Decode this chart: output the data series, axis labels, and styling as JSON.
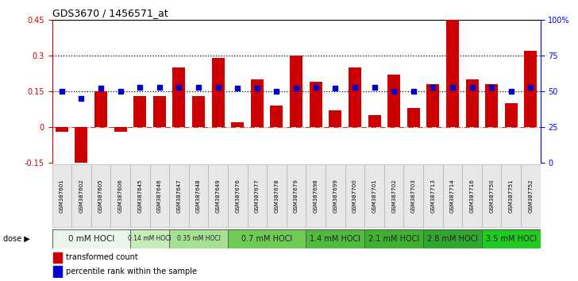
{
  "title": "GDS3670 / 1456571_at",
  "samples": [
    "GSM387601",
    "GSM387602",
    "GSM387605",
    "GSM387606",
    "GSM387645",
    "GSM387646",
    "GSM387647",
    "GSM387648",
    "GSM387649",
    "GSM387676",
    "GSM387677",
    "GSM387678",
    "GSM387679",
    "GSM387698",
    "GSM387699",
    "GSM387700",
    "GSM387701",
    "GSM387702",
    "GSM387703",
    "GSM387713",
    "GSM387714",
    "GSM387716",
    "GSM387750",
    "GSM387751",
    "GSM387752"
  ],
  "transformed_count": [
    -0.02,
    -0.2,
    0.15,
    -0.02,
    0.13,
    0.13,
    0.25,
    0.13,
    0.29,
    0.02,
    0.2,
    0.09,
    0.3,
    0.19,
    0.07,
    0.25,
    0.05,
    0.22,
    0.08,
    0.18,
    0.45,
    0.2,
    0.18,
    0.1,
    0.32
  ],
  "percentile_rank_pct": [
    50,
    45,
    52,
    50,
    53,
    53,
    53,
    53,
    53,
    52,
    52,
    50,
    52,
    53,
    52,
    53,
    53,
    50,
    50,
    53,
    53,
    53,
    53,
    50,
    53
  ],
  "dose_groups": [
    {
      "label": "0 mM HOCl",
      "start": 0,
      "end": 4,
      "color": "#e8f5e8"
    },
    {
      "label": "0.14 mM HOCl",
      "start": 4,
      "end": 6,
      "color": "#c8edbb"
    },
    {
      "label": "0.35 mM HOCl",
      "start": 6,
      "end": 9,
      "color": "#a8e095"
    },
    {
      "label": "0.7 mM HOCl",
      "start": 9,
      "end": 13,
      "color": "#70cc55"
    },
    {
      "label": "1.4 mM HOCl",
      "start": 13,
      "end": 16,
      "color": "#50bb40"
    },
    {
      "label": "2.1 mM HOCl",
      "start": 16,
      "end": 19,
      "color": "#40b030"
    },
    {
      "label": "2.8 mM HOCl",
      "start": 19,
      "end": 22,
      "color": "#30a830"
    },
    {
      "label": "3.5 mM HOCl",
      "start": 22,
      "end": 25,
      "color": "#20cc20"
    }
  ],
  "bar_color": "#cc0000",
  "dot_color": "#0000cc",
  "ylim_left": [
    -0.15,
    0.45
  ],
  "ylim_right": [
    0,
    100
  ],
  "hline_dotted": [
    0.3,
    0.15
  ],
  "hline_dashdot": 0.0,
  "background_color": "#ffffff"
}
